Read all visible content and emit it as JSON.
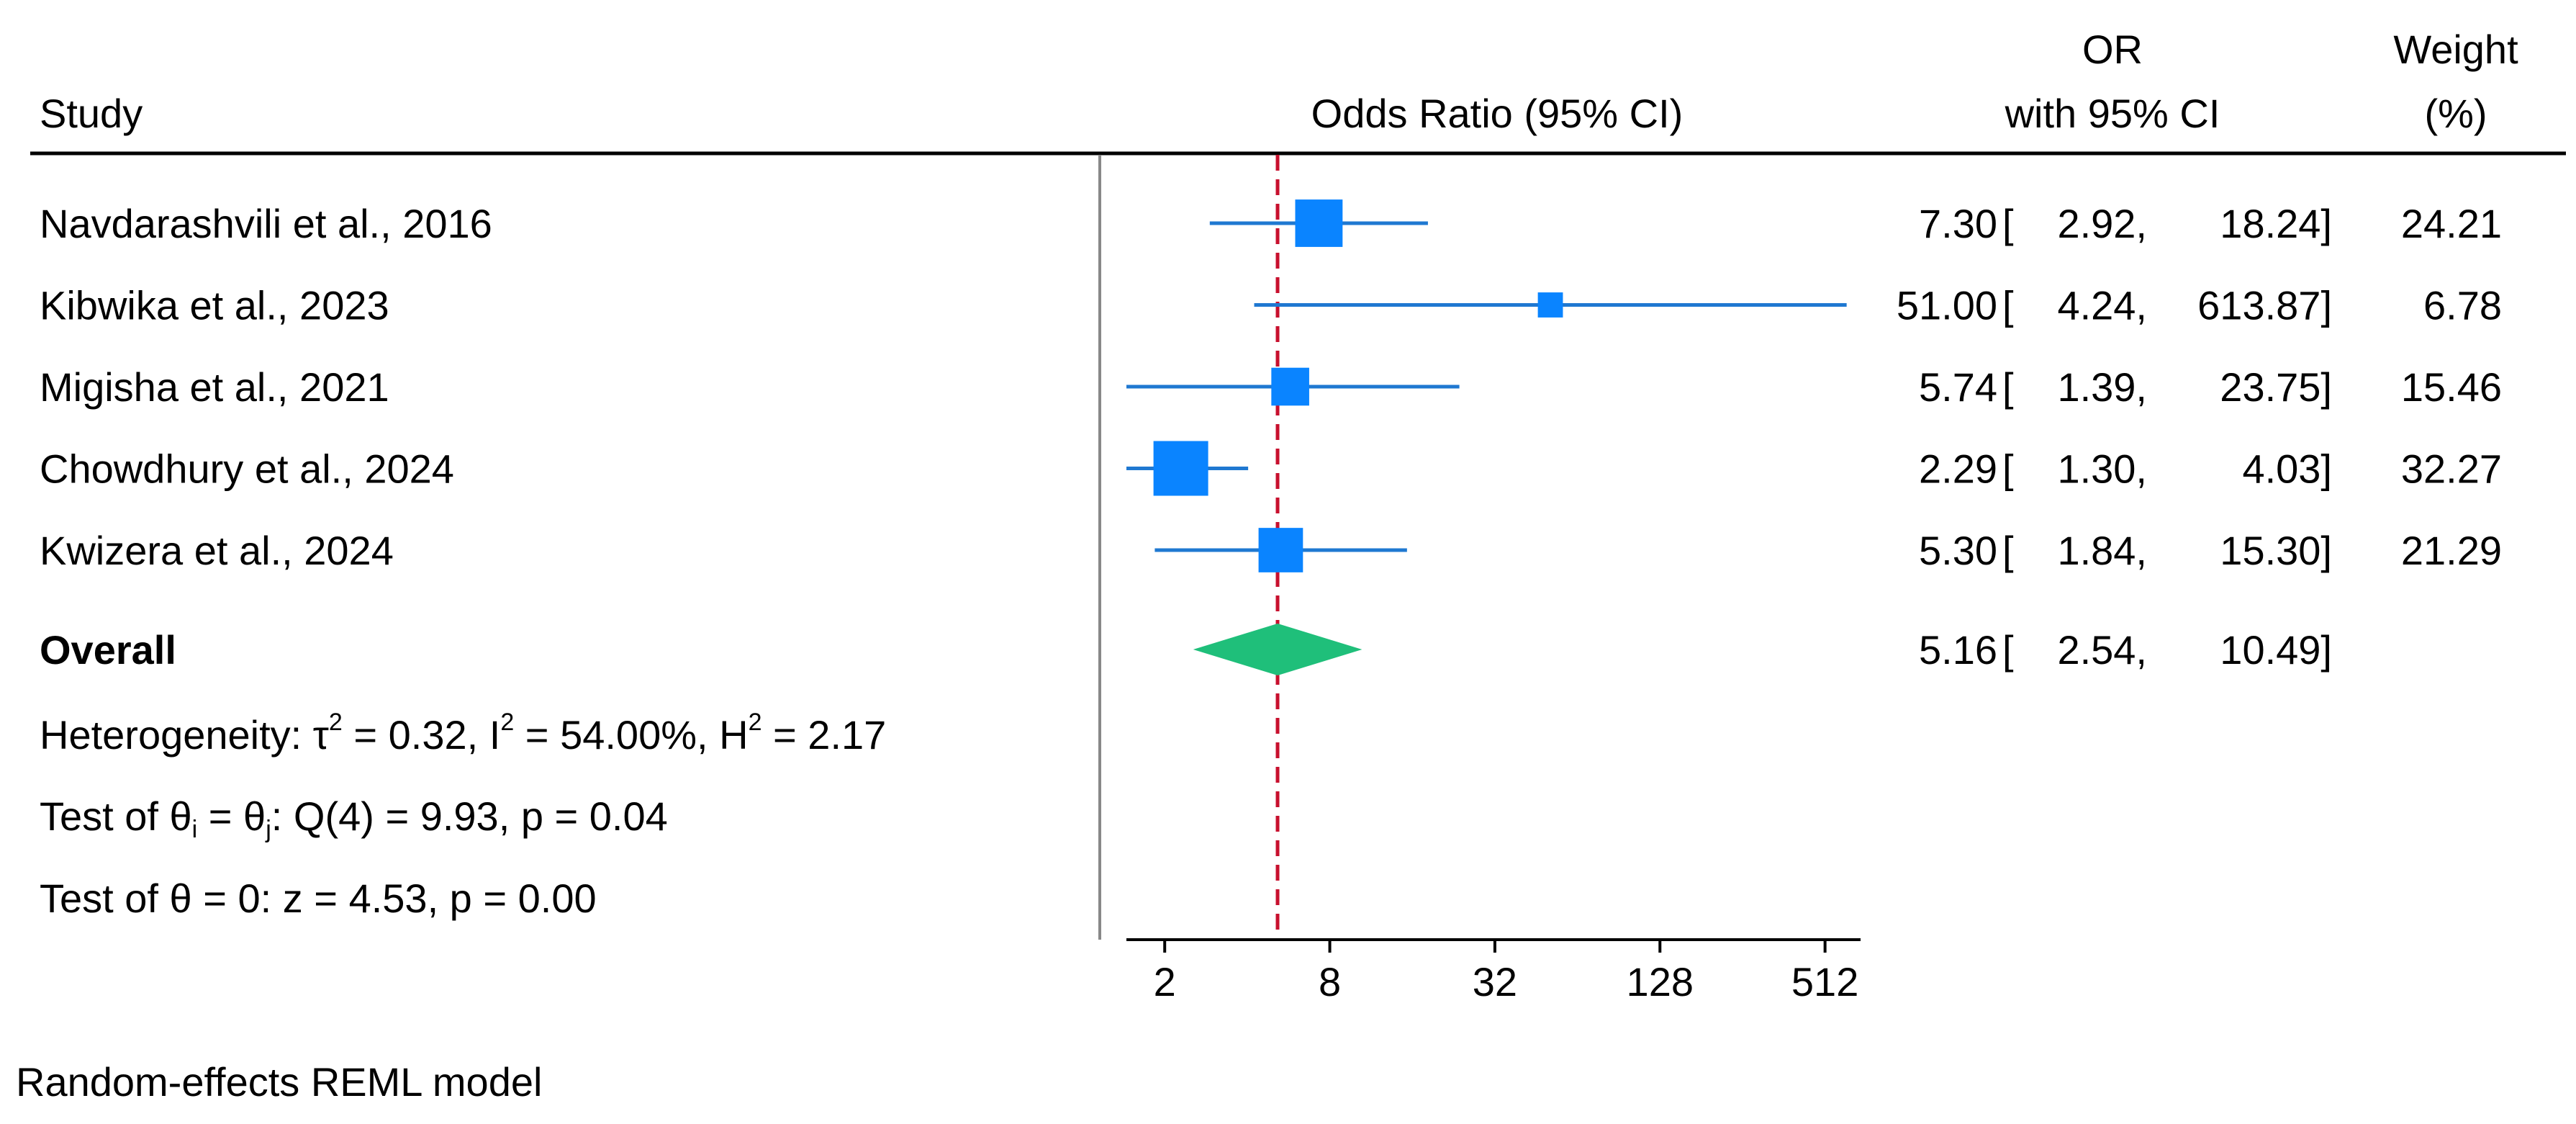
{
  "header": {
    "study_col": "Study",
    "plot_col": "Odds Ratio (95% CI)",
    "or_col_line1": "OR",
    "or_col_line2": "with 95% CI",
    "weight_col_line1": "Weight",
    "weight_col_line2": "(%)"
  },
  "colors": {
    "marker": "#0a84ff",
    "ci_line": "#1f78d1",
    "diamond": "#1fbf7a",
    "ref_line": "#c8102e",
    "divider": "#888888"
  },
  "chart_data": {
    "type": "forest",
    "scale": "log2",
    "xlim": [
      1.45,
      690
    ],
    "xticks": [
      2,
      8,
      32,
      128,
      512
    ],
    "xtick_labels": [
      "2",
      "8",
      "32",
      "128",
      "512"
    ],
    "reference_line": 5.16,
    "studies": [
      {
        "name": "Navdarashvili et al., 2016",
        "or": 7.3,
        "lower": 2.92,
        "upper": 18.24,
        "or_text": "7.30",
        "lower_text": "2.92,",
        "upper_text": "18.24]",
        "weight": 24.21,
        "weight_text": "24.21"
      },
      {
        "name": "Kibwika et al., 2023",
        "or": 51.0,
        "lower": 4.24,
        "upper": 613.87,
        "or_text": "51.00",
        "lower_text": "4.24,",
        "upper_text": "613.87]",
        "weight": 6.78,
        "weight_text": "6.78"
      },
      {
        "name": "Migisha et al., 2021",
        "or": 5.74,
        "lower": 1.39,
        "upper": 23.75,
        "or_text": "5.74",
        "lower_text": "1.39,",
        "upper_text": "23.75]",
        "weight": 15.46,
        "weight_text": "15.46"
      },
      {
        "name": "Chowdhury et al., 2024",
        "or": 2.29,
        "lower": 1.3,
        "upper": 4.03,
        "or_text": "2.29",
        "lower_text": "1.30,",
        "upper_text": "4.03]",
        "weight": 32.27,
        "weight_text": "32.27"
      },
      {
        "name": "Kwizera et al., 2024",
        "or": 5.3,
        "lower": 1.84,
        "upper": 15.3,
        "or_text": "5.30",
        "lower_text": "1.84,",
        "upper_text": "15.30]",
        "weight": 21.29,
        "weight_text": "21.29"
      }
    ],
    "overall": {
      "name": "Overall",
      "or": 5.16,
      "lower": 2.54,
      "upper": 10.49,
      "or_text": "5.16",
      "lower_text": "2.54,",
      "upper_text": "10.49]"
    },
    "heterogeneity": {
      "prefix": "Heterogeneity: τ",
      "tau2_sup": "2",
      "tau2_rest": " = 0.32, I",
      "i2_sup": "2",
      "i2_rest": " = 54.00%, H",
      "h2_sup": "2",
      "h2_rest": " = 2.17"
    },
    "test_ij": {
      "p1": "Test of θ",
      "sub_i": "i",
      "p2": " = θ",
      "sub_j": "j",
      "p3": ": Q(4) = 9.93, p = 0.04"
    },
    "test_zero": "Test of θ = 0: z = 4.53, p = 0.00",
    "footnote": "Random-effects REML model"
  }
}
